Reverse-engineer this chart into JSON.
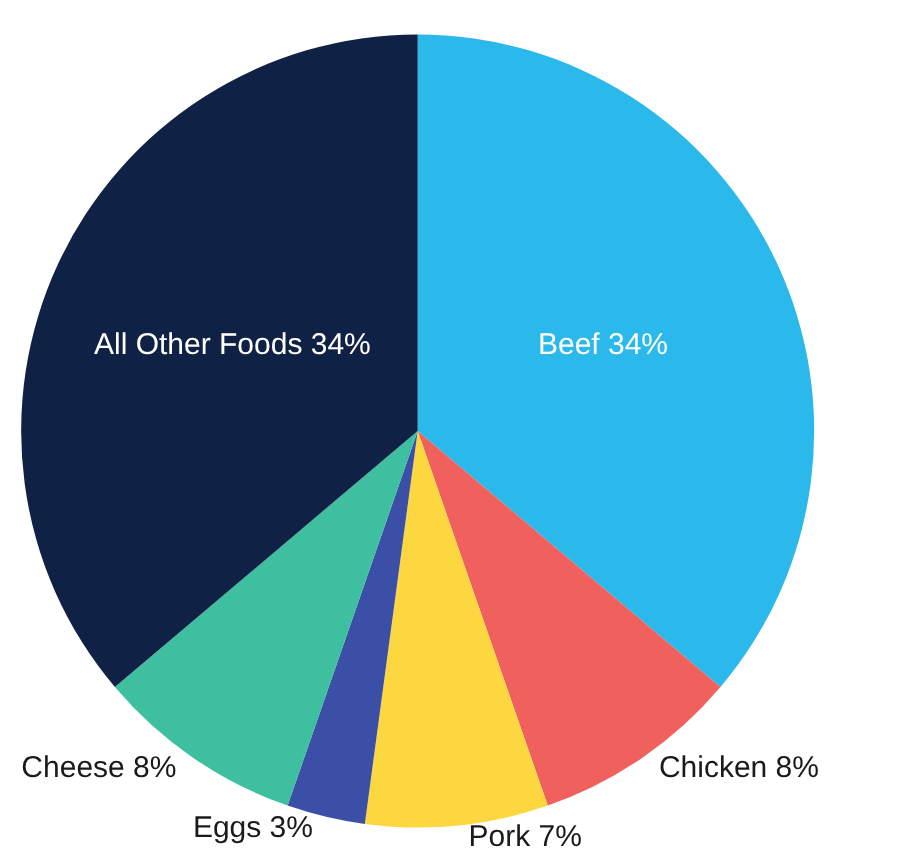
{
  "chart_data": {
    "type": "pie",
    "categories": [
      "Beef",
      "Chicken",
      "Pork",
      "Eggs",
      "Cheese",
      "All Other Foods"
    ],
    "values": [
      34,
      8,
      7,
      3,
      8,
      34
    ],
    "value_labels": [
      "34%",
      "8%",
      "7%",
      "3%",
      "8%",
      "34%"
    ],
    "colors": [
      "#2bb8ea",
      "#f0605d",
      "#fdd73f",
      "#3a4fa5",
      "#3dbfa0",
      "#0f2144"
    ]
  }
}
